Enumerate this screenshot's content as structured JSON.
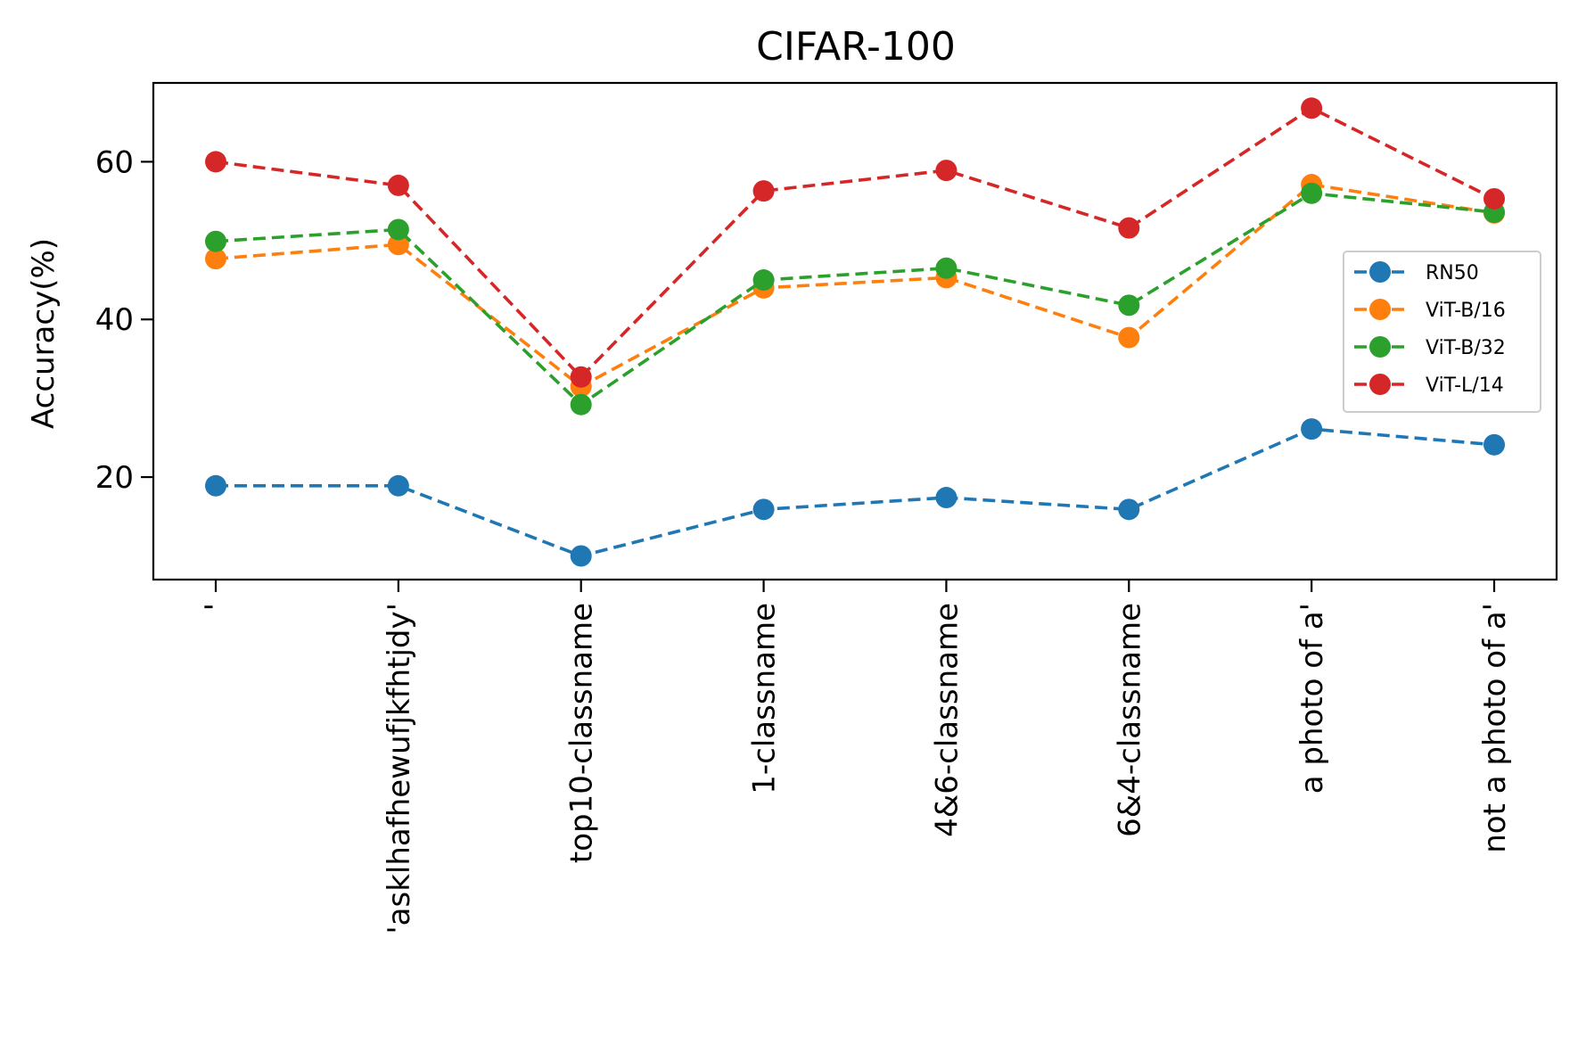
{
  "chart_data": {
    "type": "line",
    "title": "CIFAR-100",
    "xlabel": "",
    "ylabel": "Accuracy(%)",
    "categories": [
      "'",
      "'asklhafhewufjkfhtjdy'",
      "top10-classname",
      "1-classname",
      "4&6-classname",
      "6&4-classname",
      "a photo of a'",
      "not a photo of a'"
    ],
    "ylim": [
      7,
      70
    ],
    "yticks": [
      20,
      40,
      60
    ],
    "grid": false,
    "legend_position": "center-right",
    "line_style": "dashed",
    "marker": "circle",
    "series": [
      {
        "name": "RN50",
        "color": "#1f77b4",
        "values": [
          18.9,
          18.9,
          10.0,
          15.9,
          17.4,
          15.9,
          26.1,
          24.1
        ]
      },
      {
        "name": "ViT-B/16",
        "color": "#ff7f0e",
        "values": [
          47.7,
          49.5,
          31.5,
          44.0,
          45.3,
          37.7,
          57.1,
          53.5
        ]
      },
      {
        "name": "ViT-B/32",
        "color": "#2ca02c",
        "values": [
          49.9,
          51.4,
          29.2,
          45.0,
          46.5,
          41.8,
          56.0,
          53.6
        ]
      },
      {
        "name": "ViT-L/14",
        "color": "#d62728",
        "values": [
          60.0,
          57.0,
          32.7,
          56.3,
          58.9,
          51.6,
          66.8,
          55.3
        ]
      }
    ]
  }
}
